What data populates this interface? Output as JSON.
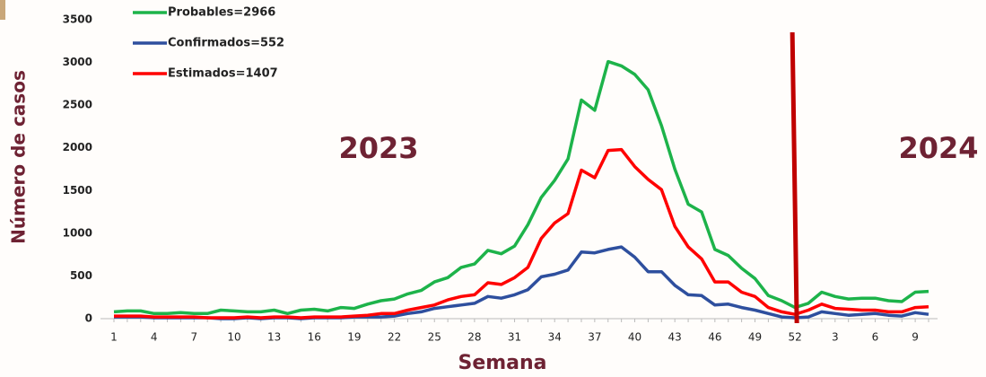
{
  "chart_data": {
    "type": "line",
    "categories": [
      "1",
      null,
      null,
      "4",
      null,
      null,
      "7",
      null,
      null,
      "10",
      null,
      null,
      "13",
      null,
      null,
      "16",
      null,
      null,
      "19",
      null,
      null,
      "22",
      null,
      null,
      "25",
      null,
      null,
      "28",
      null,
      null,
      "31",
      null,
      null,
      "34",
      null,
      null,
      "37",
      null,
      null,
      "40",
      null,
      null,
      "43",
      null,
      null,
      "46",
      null,
      null,
      "49",
      null,
      null,
      "52",
      null,
      null,
      "3",
      null,
      null,
      "6",
      null,
      null,
      "9",
      null
    ],
    "series": [
      {
        "name": "Probables=2966",
        "color": "#1db34a",
        "values": [
          80,
          90,
          90,
          60,
          60,
          70,
          60,
          60,
          100,
          90,
          80,
          80,
          100,
          60,
          100,
          110,
          90,
          130,
          120,
          170,
          210,
          230,
          290,
          330,
          430,
          480,
          600,
          640,
          800,
          760,
          850,
          1100,
          1420,
          1620,
          1870,
          2560,
          2440,
          3010,
          2960,
          2860,
          2680,
          2260,
          1750,
          1340,
          1250,
          810,
          740,
          590,
          470,
          270,
          210,
          130,
          180,
          310,
          260,
          230,
          240,
          240,
          210,
          200,
          310,
          320
        ]
      },
      {
        "name": "Confirmados=552",
        "color": "#2e4f9e",
        "values": [
          20,
          20,
          20,
          10,
          10,
          10,
          10,
          10,
          0,
          0,
          10,
          0,
          10,
          10,
          0,
          10,
          10,
          10,
          20,
          20,
          20,
          30,
          60,
          80,
          120,
          140,
          160,
          180,
          260,
          240,
          280,
          340,
          490,
          520,
          570,
          780,
          770,
          810,
          840,
          720,
          550,
          550,
          390,
          280,
          270,
          160,
          170,
          130,
          100,
          60,
          20,
          10,
          20,
          80,
          60,
          40,
          50,
          60,
          40,
          30,
          70,
          50
        ]
      },
      {
        "name": "Estimados=1407",
        "color": "#ff0000",
        "values": [
          30,
          30,
          30,
          20,
          20,
          20,
          20,
          10,
          10,
          10,
          20,
          10,
          20,
          20,
          10,
          20,
          20,
          20,
          30,
          40,
          60,
          60,
          100,
          130,
          160,
          220,
          260,
          280,
          420,
          400,
          480,
          600,
          940,
          1120,
          1230,
          1740,
          1650,
          1970,
          1980,
          1780,
          1630,
          1510,
          1080,
          840,
          700,
          430,
          430,
          310,
          260,
          130,
          80,
          50,
          100,
          170,
          120,
          110,
          100,
          100,
          80,
          80,
          130,
          140
        ]
      }
    ],
    "ylim": [
      0,
      3500
    ],
    "yticks": [
      0,
      500,
      1000,
      1500,
      2000,
      2500,
      3000,
      3500
    ],
    "ylabel": "Número de casos",
    "xlabel": "Semana",
    "annotations": [
      "2023",
      "2024"
    ],
    "legend": "top-left"
  }
}
